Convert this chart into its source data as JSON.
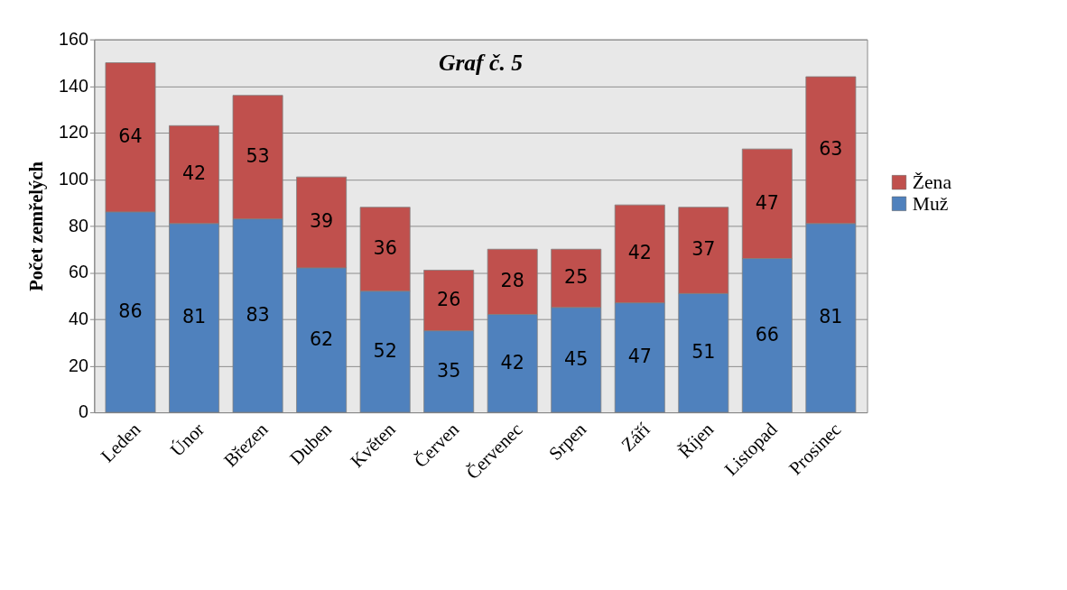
{
  "chart_data": {
    "type": "bar",
    "title": "Graf č. 5",
    "ylabel": "Počet zemřelých",
    "categories": [
      "Leden",
      "Únor",
      "Březen",
      "Duben",
      "Květen",
      "Červen",
      "Červenec",
      "Srpen",
      "Září",
      "Říjen",
      "Listopad",
      "Prosinec"
    ],
    "stacked": true,
    "series": [
      {
        "name": "Muž",
        "color": "#4f81bd",
        "values": [
          86,
          81,
          83,
          62,
          52,
          35,
          42,
          45,
          47,
          51,
          66,
          81
        ]
      },
      {
        "name": "Žena",
        "color": "#c0504d",
        "values": [
          64,
          42,
          53,
          39,
          36,
          26,
          28,
          25,
          42,
          37,
          47,
          63
        ]
      }
    ],
    "ylim": [
      0,
      160
    ],
    "yticks": [
      0,
      20,
      40,
      60,
      80,
      100,
      120,
      140,
      160
    ],
    "grid": "y",
    "legend": "right",
    "data_labels": true
  }
}
